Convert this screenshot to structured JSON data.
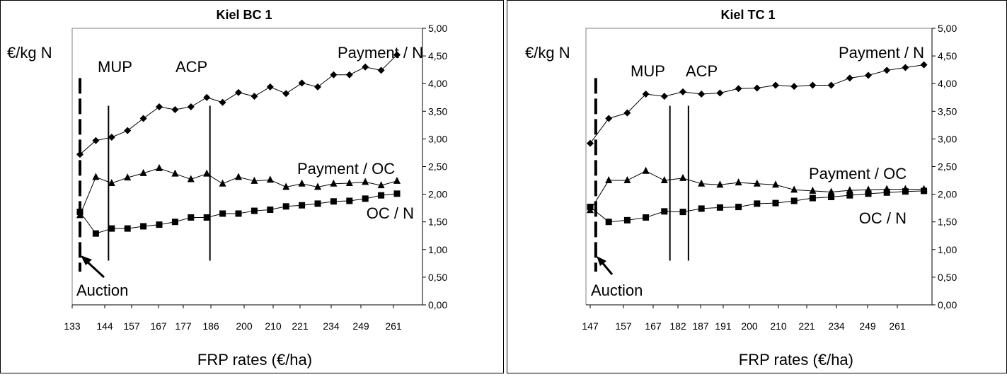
{
  "chart_data": [
    {
      "type": "line",
      "title": "Kiel BC 1",
      "xlabel": "FRP rates (€/ha)",
      "ylabel": "€/kg N",
      "x_tick_labels": [
        "133",
        "144",
        "157",
        "167",
        "177",
        "186",
        "200",
        "210",
        "221",
        "234",
        "249",
        "261"
      ],
      "y_tick_labels": [
        "0,00",
        "0,50",
        "1,00",
        "1,50",
        "2,00",
        "2,50",
        "3,00",
        "3,50",
        "4,00",
        "4,50",
        "5,00"
      ],
      "ylim": [
        0,
        5
      ],
      "y_axis_side": "right",
      "grid": false,
      "series": [
        {
          "name": "Payment / N",
          "marker": "diamond",
          "values": [
            2.72,
            2.97,
            3.03,
            3.15,
            3.37,
            3.58,
            3.53,
            3.58,
            3.75,
            3.66,
            3.84,
            3.77,
            3.94,
            3.82,
            4.01,
            3.94,
            4.16,
            4.16,
            4.3,
            4.24,
            4.52
          ]
        },
        {
          "name": "Payment / OC",
          "marker": "triangle",
          "values": [
            1.62,
            2.31,
            2.2,
            2.3,
            2.38,
            2.47,
            2.37,
            2.27,
            2.37,
            2.19,
            2.31,
            2.24,
            2.26,
            2.13,
            2.19,
            2.13,
            2.19,
            2.2,
            2.22,
            2.16,
            2.24
          ]
        },
        {
          "name": "OC / N",
          "marker": "square",
          "values": [
            1.68,
            1.29,
            1.38,
            1.38,
            1.42,
            1.45,
            1.5,
            1.58,
            1.58,
            1.65,
            1.65,
            1.7,
            1.72,
            1.78,
            1.8,
            1.83,
            1.87,
            1.88,
            1.92,
            1.98,
            2.01
          ]
        }
      ],
      "vlines": [
        {
          "label": "Auction",
          "style": "dashed",
          "at_point": 0
        },
        {
          "label": "MUP",
          "style": "solid",
          "at_point": 1.8
        },
        {
          "label": "ACP",
          "style": "solid",
          "at_point": 8.2
        }
      ]
    },
    {
      "type": "line",
      "title": "Kiel TC 1",
      "xlabel": "FRP rates (€/ha)",
      "ylabel": "€/kg N",
      "x_tick_labels": [
        "147",
        "157",
        "167",
        "182",
        "187",
        "191",
        "200",
        "210",
        "221",
        "234",
        "249",
        "261"
      ],
      "y_tick_labels": [
        "0,00",
        "0,50",
        "1,00",
        "1,50",
        "2,00",
        "2,50",
        "3,00",
        "3,50",
        "4,00",
        "4,50",
        "5,00"
      ],
      "ylim": [
        0,
        5
      ],
      "y_axis_side": "right",
      "grid": false,
      "series": [
        {
          "name": "Payment / N",
          "marker": "diamond",
          "values": [
            2.92,
            3.37,
            3.47,
            3.81,
            3.77,
            3.85,
            3.81,
            3.83,
            3.91,
            3.92,
            3.97,
            3.95,
            3.97,
            3.97,
            4.1,
            4.15,
            4.24,
            4.29,
            4.34
          ]
        },
        {
          "name": "Payment / OC",
          "marker": "triangle",
          "values": [
            1.71,
            2.25,
            2.25,
            2.42,
            2.25,
            2.29,
            2.19,
            2.17,
            2.21,
            2.19,
            2.17,
            2.08,
            2.06,
            2.04,
            2.07,
            2.08,
            2.09,
            2.09,
            2.09
          ]
        },
        {
          "name": "OC / N",
          "marker": "square",
          "values": [
            1.77,
            1.5,
            1.53,
            1.58,
            1.69,
            1.68,
            1.74,
            1.76,
            1.77,
            1.83,
            1.84,
            1.88,
            1.93,
            1.95,
            1.98,
            2.01,
            2.03,
            2.05,
            2.06
          ]
        }
      ],
      "vlines": [
        {
          "label": "Auction",
          "style": "dashed",
          "at_point": 0.3
        },
        {
          "label": "MUP",
          "style": "solid",
          "at_point": 4.3
        },
        {
          "label": "ACP",
          "style": "solid",
          "at_point": 5.3
        }
      ]
    }
  ]
}
